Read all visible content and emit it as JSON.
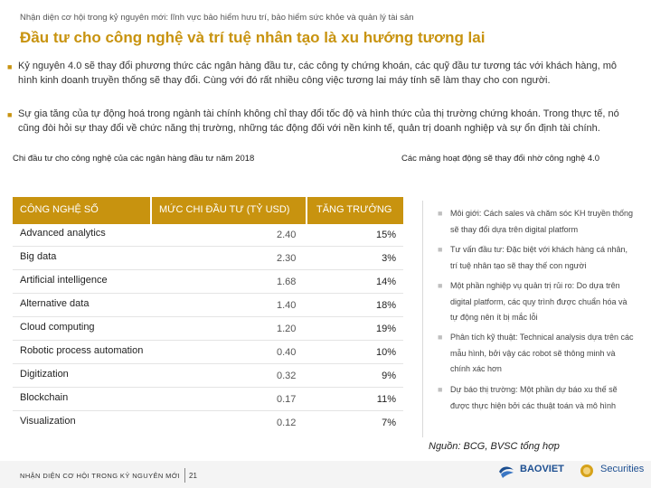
{
  "header": {
    "subtitle": "Nhận diện cơ hội trong kỷ nguyên mới: lĩnh vực bảo hiểm hưu trí, bảo hiểm sức khỏe và quản lý tài sản",
    "title": "Đầu tư cho công nghệ và trí tuệ nhân tạo là xu hướng tương lai"
  },
  "bullets": [
    "Kỷ nguyên 4.0 sẽ thay đổi phương thức các ngân hàng đầu tư, các công ty chứng khoán, các quỹ đầu tư tương tác với khách hàng, mô hình kinh doanh truyền thống sẽ thay đổi. Cùng với đó rất nhiều công việc tương lai máy tính sẽ làm thay cho con người.",
    "Sự gia tăng của tự động hoá trong ngành tài chính không chỉ thay đổi tốc độ và hình thức của thị trường chứng khoán. Trong thực tế, nó cũng đòi hỏi sự thay đổi về chức năng thị trường, những tác động đối với nền kinh tế, quản trị doanh nghiệp và sự ổn định tài chính."
  ],
  "captions": {
    "left": "Chi đầu tư cho công nghệ của các ngân hàng đầu tư năm 2018",
    "right": "Các mảng hoạt động sẽ thay đổi nhờ công nghệ 4.0"
  },
  "table": {
    "headers": [
      "CÔNG NGHỆ SỐ",
      "MỨC CHI ĐẦU TƯ (TỶ USD)",
      "TĂNG TRƯỞNG"
    ],
    "rows": [
      {
        "tech": "Advanced analytics",
        "spend": "2.40",
        "growth": "15%"
      },
      {
        "tech": "Big data",
        "spend": "2.30",
        "growth": "3%"
      },
      {
        "tech": "Artificial intelligence",
        "spend": "1.68",
        "growth": "14%"
      },
      {
        "tech": "Alternative data",
        "spend": "1.40",
        "growth": "18%"
      },
      {
        "tech": "Cloud computing",
        "spend": "1.20",
        "growth": "19%"
      },
      {
        "tech": "Robotic process automation",
        "spend": "0.40",
        "growth": "10%"
      },
      {
        "tech": "Digitization",
        "spend": "0.32",
        "growth": "9%"
      },
      {
        "tech": "Blockchain",
        "spend": "0.17",
        "growth": "11%"
      },
      {
        "tech": "Visualization",
        "spend": "0.12",
        "growth": "7%"
      }
    ]
  },
  "activities": [
    "Môi giới: Cách sales và chăm sóc KH truyền thống sẽ thay đổi dựa trên digital platform",
    "Tư vấn đầu tư: Đặc biệt với khách hàng cá nhân, trí tuệ nhân tạo sẽ thay thế con người",
    "Một phần nghiệp vụ quản trị rủi ro: Do dựa trên digital platform, các quy trình được chuẩn hóa và tự động nên ít bị mắc lỗi",
    "Phân tích kỹ thuật: Technical analysis dựa trên các mẫu hình, bởi vậy các robot sẽ thông minh và chính xác hơn",
    "Dự báo thị trường: Một phần dự báo xu thế sẽ được thực hiện bởi các thuật toán và mô hình"
  ],
  "source": "Nguồn: BCG, BVSC tổng hợp",
  "footer": {
    "left": "NHẬN DIỆN CƠ HỘI TRONG KỶ NGUYÊN MỚI",
    "page": "21",
    "logo_main": "BAOVIET",
    "logo_sub": "Securities"
  },
  "colors": {
    "accent": "#c8930f",
    "logo_blue": "#1d4f91"
  }
}
